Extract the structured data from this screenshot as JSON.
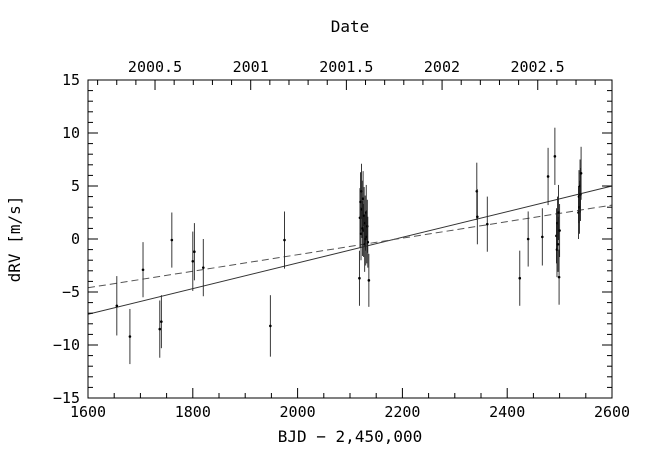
{
  "chart_data": {
    "type": "scatter",
    "xlabel": "BJD − 2,450,000",
    "ylabel": "dRV [m/s]",
    "top_axis_label": "Date",
    "xlim": [
      1600,
      2600
    ],
    "ylim": [
      -15,
      15
    ],
    "x_ticks": [
      "1600",
      "1800",
      "2000",
      "2200",
      "2400",
      "2600"
    ],
    "y_ticks": [
      "−15",
      "−10",
      "−5",
      "0",
      "5",
      "10",
      "15"
    ],
    "top_ticks": [
      {
        "label": "2000.5",
        "x": 1727.9
      },
      {
        "label": "2001",
        "x": 1910.5
      },
      {
        "label": "2001.5",
        "x": 2093.0
      },
      {
        "label": "2002",
        "x": 2275.5
      },
      {
        "label": "2002.5",
        "x": 2458.0
      }
    ],
    "points": [
      {
        "x": 1655,
        "y": -6.3,
        "err": 2.8
      },
      {
        "x": 1680,
        "y": -9.2,
        "err": 2.6
      },
      {
        "x": 1705,
        "y": -2.9,
        "err": 2.6
      },
      {
        "x": 1737,
        "y": -8.5,
        "err": 2.7
      },
      {
        "x": 1740,
        "y": -7.8,
        "err": 2.5
      },
      {
        "x": 1760,
        "y": -0.1,
        "err": 2.6
      },
      {
        "x": 1800,
        "y": -2.1,
        "err": 2.8
      },
      {
        "x": 1803,
        "y": -1.2,
        "err": 2.7
      },
      {
        "x": 1820,
        "y": -2.7,
        "err": 2.7
      },
      {
        "x": 1948,
        "y": -8.2,
        "err": 2.9
      },
      {
        "x": 1975,
        "y": -0.1,
        "err": 2.7
      },
      {
        "x": 2118,
        "y": -3.7,
        "err": 2.6
      },
      {
        "x": 2119,
        "y": 2.0,
        "err": 2.8
      },
      {
        "x": 2120,
        "y": 3.5,
        "err": 2.8
      },
      {
        "x": 2121,
        "y": 0.5,
        "err": 2.5
      },
      {
        "x": 2122,
        "y": 4.5,
        "err": 2.6
      },
      {
        "x": 2123,
        "y": 2.8,
        "err": 2.7
      },
      {
        "x": 2124,
        "y": 1.0,
        "err": 2.6
      },
      {
        "x": 2125,
        "y": 3.8,
        "err": 2.6
      },
      {
        "x": 2126,
        "y": 0.8,
        "err": 2.5
      },
      {
        "x": 2127,
        "y": 2.2,
        "err": 2.7
      },
      {
        "x": 2128,
        "y": -0.5,
        "err": 2.6
      },
      {
        "x": 2129,
        "y": 1.5,
        "err": 2.6
      },
      {
        "x": 2130,
        "y": 0.0,
        "err": 2.5
      },
      {
        "x": 2131,
        "y": 2.5,
        "err": 2.6
      },
      {
        "x": 2132,
        "y": 0.2,
        "err": 2.5
      },
      {
        "x": 2133,
        "y": 1.2,
        "err": 2.5
      },
      {
        "x": 2134,
        "y": -0.3,
        "err": 2.4
      },
      {
        "x": 2136,
        "y": -3.9,
        "err": 2.5
      },
      {
        "x": 2342,
        "y": 4.5,
        "err": 2.7
      },
      {
        "x": 2343,
        "y": 2.1,
        "err": 2.6
      },
      {
        "x": 2362,
        "y": 1.4,
        "err": 2.6
      },
      {
        "x": 2424,
        "y": -3.7,
        "err": 2.6
      },
      {
        "x": 2440,
        "y": 0.0,
        "err": 2.6
      },
      {
        "x": 2467,
        "y": 0.2,
        "err": 2.7
      },
      {
        "x": 2478,
        "y": 5.9,
        "err": 2.7
      },
      {
        "x": 2491,
        "y": 7.8,
        "err": 2.7
      },
      {
        "x": 2494,
        "y": 0.3,
        "err": 2.6
      },
      {
        "x": 2495,
        "y": -1.0,
        "err": 2.6
      },
      {
        "x": 2496,
        "y": 1.5,
        "err": 2.5
      },
      {
        "x": 2497,
        "y": -0.5,
        "err": 2.6
      },
      {
        "x": 2498,
        "y": 2.5,
        "err": 2.6
      },
      {
        "x": 2499,
        "y": -3.6,
        "err": 2.6
      },
      {
        "x": 2500,
        "y": 0.8,
        "err": 2.5
      },
      {
        "x": 2536,
        "y": 2.5,
        "err": 2.5
      },
      {
        "x": 2537,
        "y": 4.0,
        "err": 2.5
      },
      {
        "x": 2538,
        "y": 3.0,
        "err": 2.5
      },
      {
        "x": 2539,
        "y": 5.0,
        "err": 2.5
      },
      {
        "x": 2540,
        "y": 4.2,
        "err": 2.5
      },
      {
        "x": 2541,
        "y": 6.2,
        "err": 2.5
      }
    ],
    "fits": [
      {
        "style": "solid",
        "x": [
          1600,
          2600
        ],
        "y": [
          -7.1,
          5.0
        ]
      },
      {
        "style": "dashed",
        "x": [
          1600,
          2600
        ],
        "y": [
          -4.6,
          3.2
        ]
      }
    ],
    "grid": false,
    "legend": "none"
  }
}
